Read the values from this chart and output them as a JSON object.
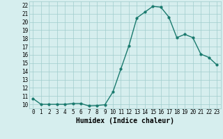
{
  "x": [
    0,
    1,
    2,
    3,
    4,
    5,
    6,
    7,
    8,
    9,
    10,
    11,
    12,
    13,
    14,
    15,
    16,
    17,
    18,
    19,
    20,
    21,
    22,
    23
  ],
  "y": [
    10.7,
    10.0,
    10.0,
    10.0,
    10.0,
    10.1,
    10.1,
    9.8,
    9.85,
    9.95,
    11.5,
    14.3,
    17.1,
    20.5,
    21.2,
    21.9,
    21.8,
    20.6,
    18.1,
    18.5,
    18.1,
    16.1,
    15.7,
    14.8
  ],
  "line_color": "#1a7a6e",
  "marker": "o",
  "marker_size": 2.0,
  "bg_color": "#d6eeee",
  "grid_color": "#a0cccc",
  "xlabel": "Humidex (Indice chaleur)",
  "ylim": [
    9.5,
    22.5
  ],
  "yticks": [
    10,
    11,
    12,
    13,
    14,
    15,
    16,
    17,
    18,
    19,
    20,
    21,
    22
  ],
  "xticks": [
    0,
    1,
    2,
    3,
    4,
    5,
    6,
    7,
    8,
    9,
    10,
    11,
    12,
    13,
    14,
    15,
    16,
    17,
    18,
    19,
    20,
    21,
    22,
    23
  ],
  "xlabel_fontsize": 7,
  "tick_fontsize": 5.5,
  "line_width": 1.0
}
